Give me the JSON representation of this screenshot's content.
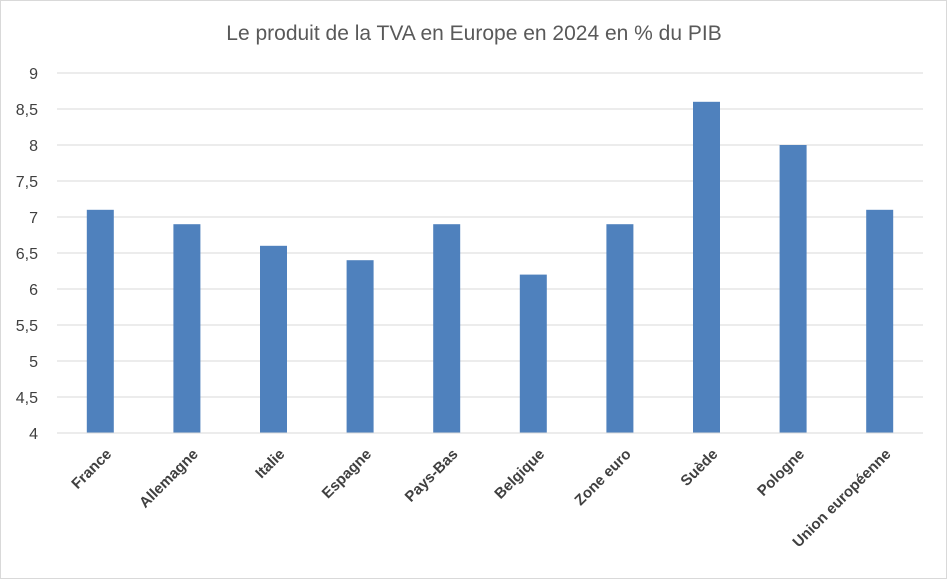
{
  "chart_data": {
    "type": "bar",
    "title": "Le produit de la TVA en Europe en 2024 en % du PIB",
    "xlabel": "",
    "ylabel": "",
    "categories": [
      "France",
      "Allemagne",
      "Italie",
      "Espagne",
      "Pays-Bas",
      "Belgique",
      "Zone euro",
      "Suède",
      "Pologne",
      "Union européenne"
    ],
    "values": [
      7.1,
      6.9,
      6.6,
      6.4,
      6.9,
      6.2,
      6.9,
      8.6,
      8.0,
      7.1
    ],
    "ylim": [
      4,
      9
    ],
    "yticks": [
      4,
      4.5,
      5,
      5.5,
      6,
      6.5,
      7,
      7.5,
      8,
      8.5,
      9
    ],
    "ytick_labels": [
      "4",
      "4,5",
      "5",
      "5,5",
      "6",
      "6,5",
      "7",
      "7,5",
      "8",
      "8,5",
      "9"
    ],
    "grid": true,
    "legend": "none",
    "colors": {
      "bar": "#4f81bd",
      "grid": "#d9d9d9",
      "text": "#404040",
      "title": "#595959"
    }
  }
}
